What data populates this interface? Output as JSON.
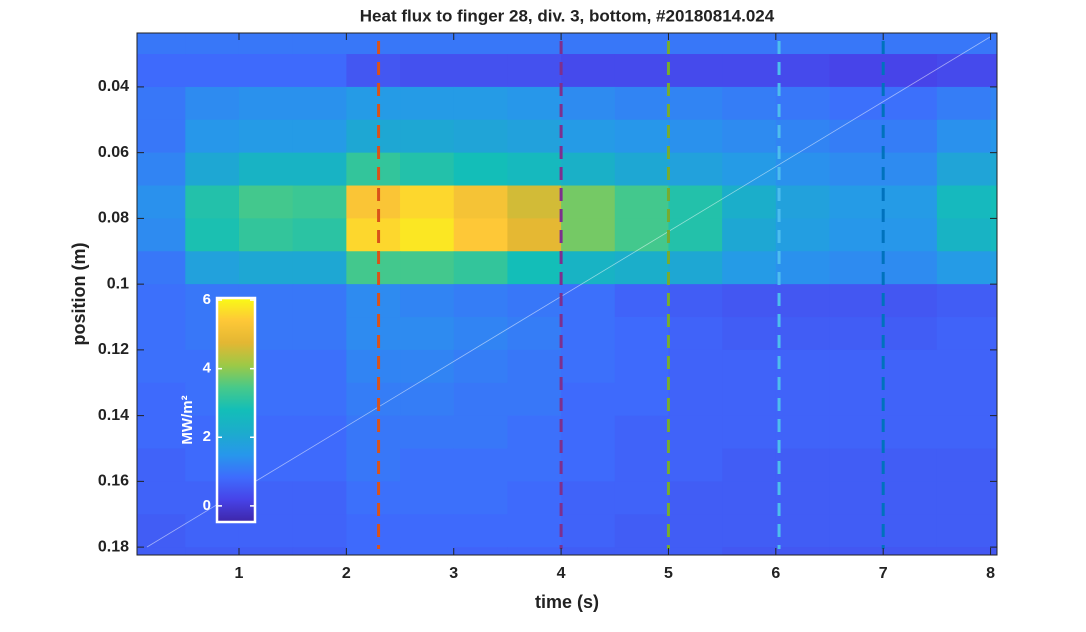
{
  "chart_data": {
    "type": "heatmap",
    "title": "Heat flux to finger 28, div. 3, bottom, #20180814.024",
    "xlabel": "time (s)",
    "ylabel": "position (m)",
    "x": [
      0.25,
      0.75,
      1.25,
      1.75,
      2.25,
      2.75,
      3.25,
      3.75,
      4.25,
      4.75,
      5.25,
      5.75,
      6.25,
      6.75,
      7.25,
      7.75,
      8.25
    ],
    "y": [
      0.025,
      0.035,
      0.045,
      0.055,
      0.065,
      0.075,
      0.085,
      0.095,
      0.105,
      0.115,
      0.125,
      0.135,
      0.145,
      0.155,
      0.165,
      0.175,
      0.185
    ],
    "z": [
      [
        1.0,
        1.0,
        1.0,
        1.0,
        1.0,
        1.0,
        1.0,
        1.0,
        1.0,
        1.0,
        1.0,
        1.0,
        1.0,
        1.0,
        1.0,
        1.0,
        1.0
      ],
      [
        0.8,
        0.8,
        0.8,
        0.8,
        0.5,
        0.4,
        0.4,
        0.4,
        0.3,
        0.3,
        0.3,
        0.3,
        0.3,
        0.2,
        0.2,
        0.3,
        0.3
      ],
      [
        1.0,
        1.3,
        1.4,
        1.4,
        1.6,
        1.6,
        1.6,
        1.5,
        1.3,
        1.2,
        1.2,
        1.1,
        1.0,
        0.9,
        0.9,
        1.1,
        1.2
      ],
      [
        1.0,
        1.5,
        1.6,
        1.6,
        2.0,
        2.0,
        1.9,
        1.8,
        1.6,
        1.5,
        1.4,
        1.3,
        1.2,
        1.1,
        1.1,
        1.4,
        1.5
      ],
      [
        1.2,
        2.0,
        2.4,
        2.4,
        3.2,
        3.0,
        2.8,
        2.6,
        2.3,
        2.0,
        1.8,
        1.6,
        1.4,
        1.3,
        1.3,
        1.9,
        2.0
      ],
      [
        1.4,
        3.0,
        3.4,
        3.3,
        5.3,
        5.6,
        5.2,
        4.6,
        3.8,
        3.4,
        3.0,
        2.2,
        1.8,
        1.6,
        1.6,
        2.6,
        2.8
      ],
      [
        1.3,
        2.9,
        3.2,
        3.1,
        5.6,
        5.8,
        5.4,
        4.8,
        3.8,
        3.4,
        3.0,
        2.0,
        1.7,
        1.5,
        1.5,
        2.4,
        2.6
      ],
      [
        1.0,
        1.8,
        2.0,
        2.0,
        3.4,
        3.4,
        3.2,
        2.8,
        2.4,
        2.2,
        2.0,
        1.6,
        1.4,
        1.3,
        1.3,
        1.6,
        1.7
      ],
      [
        0.9,
        1.0,
        1.0,
        1.0,
        1.3,
        1.2,
        1.1,
        1.0,
        0.9,
        0.7,
        0.6,
        0.5,
        0.5,
        0.5,
        0.5,
        0.6,
        0.6
      ],
      [
        0.9,
        1.0,
        1.0,
        1.0,
        1.3,
        1.3,
        1.2,
        1.1,
        0.9,
        0.8,
        0.7,
        0.6,
        0.6,
        0.6,
        0.6,
        0.7,
        0.7
      ],
      [
        0.9,
        0.9,
        0.9,
        0.9,
        1.2,
        1.2,
        1.1,
        1.0,
        0.9,
        0.8,
        0.7,
        0.7,
        0.7,
        0.7,
        0.7,
        0.7,
        0.7
      ],
      [
        0.8,
        0.9,
        0.9,
        0.9,
        1.1,
        1.1,
        1.0,
        1.0,
        0.8,
        0.8,
        0.7,
        0.7,
        0.7,
        0.7,
        0.7,
        0.7,
        0.7
      ],
      [
        0.8,
        0.8,
        0.8,
        0.8,
        1.0,
        1.0,
        1.0,
        0.9,
        0.8,
        0.7,
        0.7,
        0.7,
        0.7,
        0.7,
        0.7,
        0.7,
        0.7
      ],
      [
        0.7,
        0.8,
        0.8,
        0.8,
        1.0,
        0.9,
        0.9,
        0.9,
        0.8,
        0.7,
        0.7,
        0.6,
        0.6,
        0.6,
        0.6,
        0.6,
        0.6
      ],
      [
        0.7,
        0.7,
        0.7,
        0.7,
        0.9,
        0.9,
        0.9,
        0.8,
        0.7,
        0.7,
        0.6,
        0.6,
        0.6,
        0.6,
        0.6,
        0.6,
        0.6
      ],
      [
        0.6,
        0.7,
        0.7,
        0.7,
        0.8,
        0.8,
        0.8,
        0.8,
        0.7,
        0.6,
        0.6,
        0.6,
        0.6,
        0.6,
        0.6,
        0.6,
        0.6
      ],
      [
        0.6,
        0.6,
        0.6,
        0.6,
        0.8,
        0.8,
        0.7,
        0.7,
        0.6,
        0.6,
        0.6,
        0.5,
        0.5,
        0.5,
        0.5,
        0.5,
        0.5
      ]
    ],
    "xlim": [
      0.05,
      8.06
    ],
    "xticks": [
      1,
      2,
      3,
      4,
      5,
      6,
      7,
      8
    ],
    "ylim": [
      0.0236,
      0.1824
    ],
    "y_reversed": true,
    "yticks": [
      0.04,
      0.06,
      0.08,
      {
        "value": 0.1,
        "label": "0.1"
      },
      0.12,
      0.14,
      0.16,
      0.18
    ],
    "colormap": "parula",
    "clim": [
      -0.47,
      6.06
    ],
    "cticks": [
      0,
      2,
      4,
      6
    ],
    "clabel": "MW/m²",
    "vlines": [
      {
        "x": 2.3,
        "color": "#d95319"
      },
      {
        "x": 4.0,
        "color": "#7e2f8e"
      },
      {
        "x": 5.0,
        "color": "#77ac30"
      },
      {
        "x": 6.03,
        "color": "#4dbeee"
      },
      {
        "x": 7.0,
        "color": "#0072bd"
      }
    ]
  }
}
